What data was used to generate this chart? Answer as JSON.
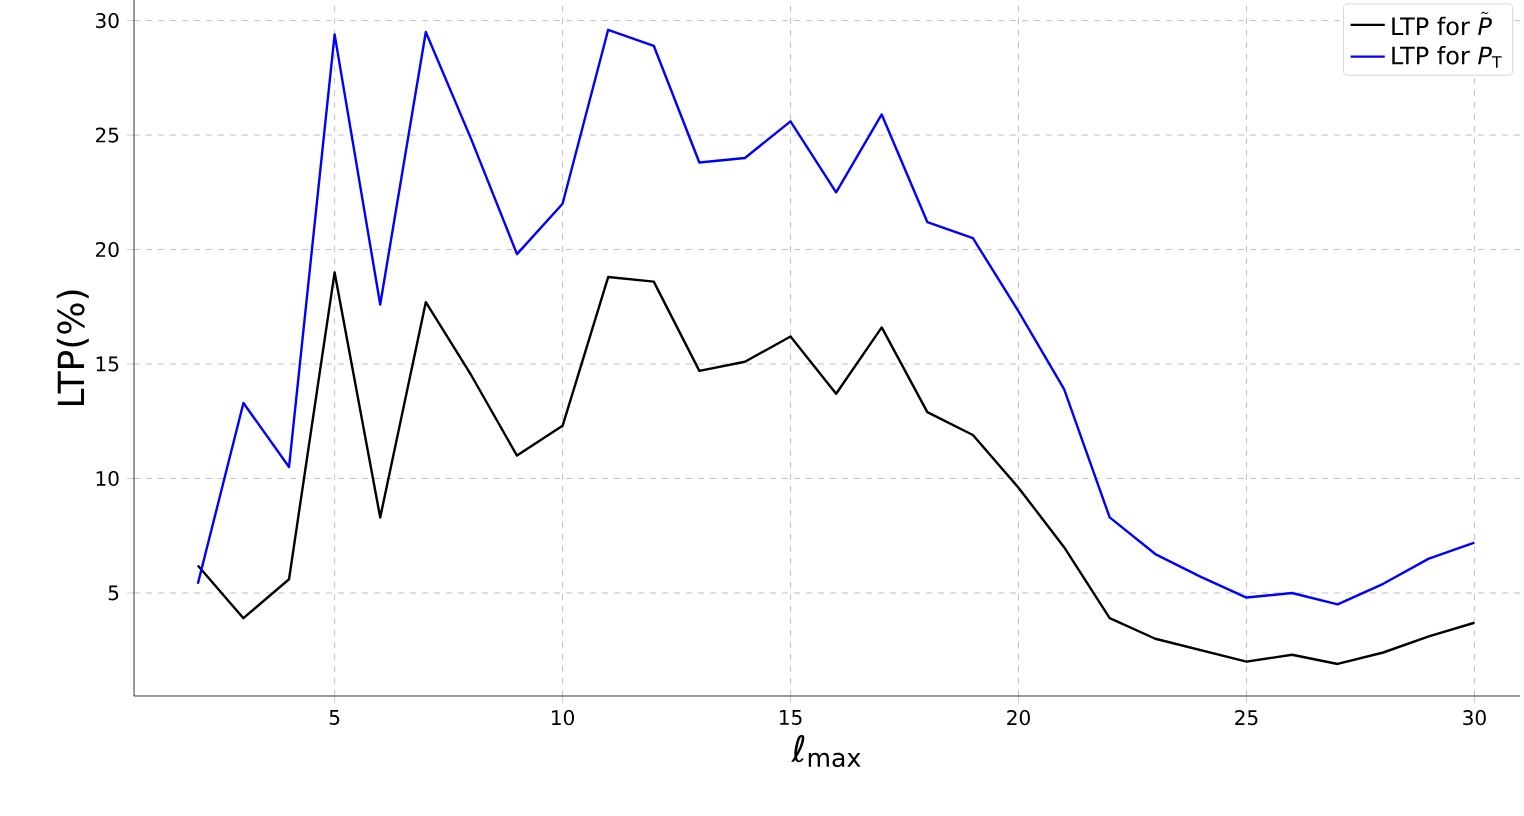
{
  "chart_data": {
    "type": "line",
    "xlabel": "ℓ$_{max}$",
    "ylabel": "LTP(%)",
    "x": [
      2,
      3,
      4,
      5,
      6,
      7,
      8,
      9,
      10,
      11,
      12,
      13,
      14,
      15,
      16,
      17,
      18,
      19,
      20,
      21,
      22,
      23,
      24,
      25,
      26,
      27,
      28,
      29,
      30
    ],
    "series": [
      {
        "name": "\\mbox{LTP for }\\tilde{\\mbox{\\itshape P}}",
        "color": "#000000",
        "values": [
          6.2,
          3.9,
          5.6,
          19.0,
          8.3,
          17.7,
          14.5,
          11.0,
          12.3,
          18.8,
          18.6,
          14.7,
          15.1,
          16.2,
          13.7,
          16.6,
          12.9,
          11.9,
          9.6,
          7.0,
          3.9,
          3.0,
          2.5,
          2.0,
          2.3,
          1.9,
          2.4,
          3.1,
          3.7
        ]
      },
      {
        "name": "LTP for *P*$_{T}$",
        "color": "#0000ff",
        "values": [
          5.4,
          13.3,
          10.5,
          29.4,
          17.6,
          29.5,
          24.8,
          19.8,
          22.0,
          29.6,
          28.9,
          23.8,
          24.0,
          25.6,
          22.5,
          25.9,
          21.2,
          20.5,
          17.3,
          13.9,
          8.3,
          6.7,
          5.7,
          4.8,
          5.0,
          4.5,
          5.4,
          6.5,
          7.2
        ]
      }
    ],
    "xlim": [
      0.6,
      31.0
    ],
    "ylim": [
      0.5,
      30.9
    ],
    "xticks": [
      5,
      10,
      15,
      20,
      25,
      30
    ],
    "yticks": [
      5,
      10,
      15,
      20,
      25,
      30
    ],
    "grid": true,
    "legend": "top right",
    "line_style": "solid"
  }
}
